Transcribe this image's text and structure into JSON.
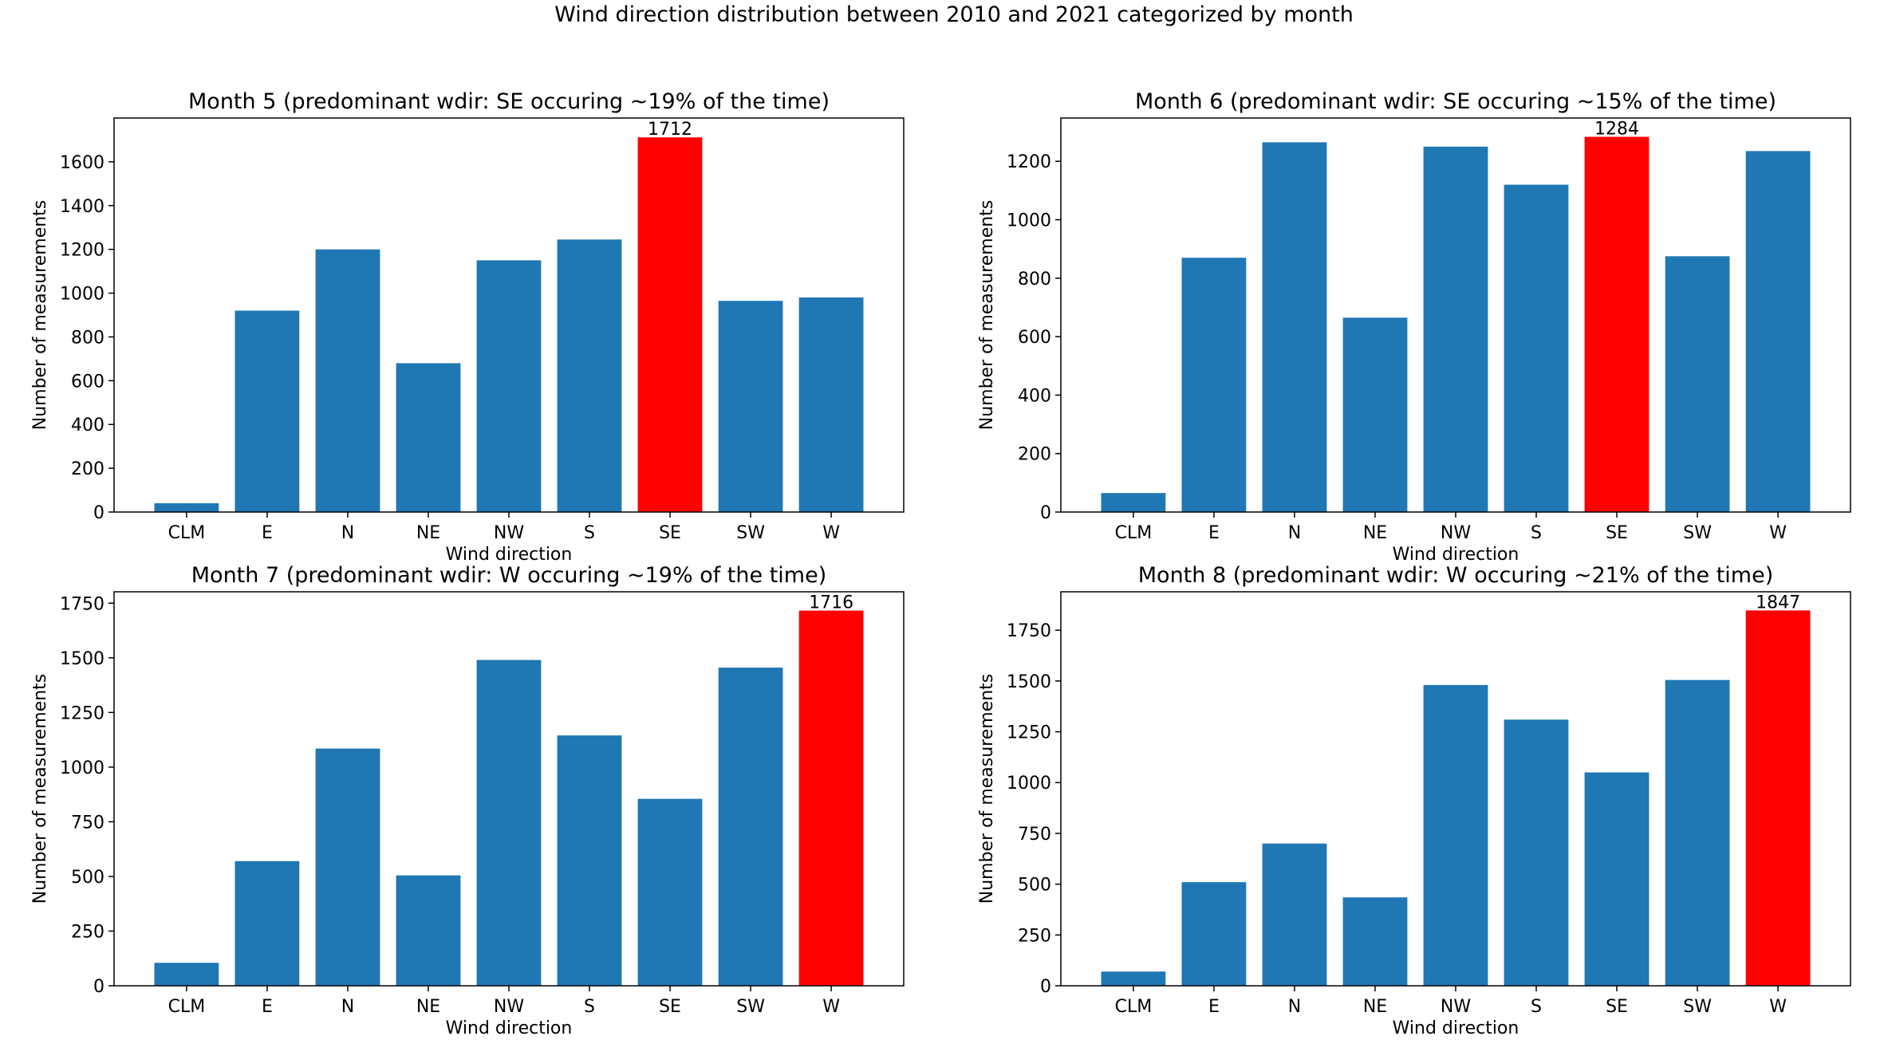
{
  "figure": {
    "title": "Wind direction distribution between 2010 and 2021 categorized by month"
  },
  "colors": {
    "bar": "#1f77b4",
    "highlight": "#ff0000",
    "axis": "#000000",
    "background": "#ffffff"
  },
  "chart_data": [
    {
      "type": "bar",
      "title": "Month 5 (predominant wdir: SE occuring ~19% of the time)",
      "xlabel": "Wind direction",
      "ylabel": "Number of measurements",
      "categories": [
        "CLM",
        "E",
        "N",
        "NE",
        "NW",
        "S",
        "SE",
        "SW",
        "W"
      ],
      "values": [
        40,
        920,
        1200,
        680,
        1150,
        1245,
        1712,
        965,
        980
      ],
      "highlight": "SE",
      "highlight_label": "1712",
      "ylim": [
        0,
        1800
      ],
      "yticks": [
        0,
        200,
        400,
        600,
        800,
        1000,
        1200,
        1400,
        1600
      ],
      "ytick_labels": [
        "0",
        "200",
        "400",
        "600",
        "800",
        "1000",
        "1200",
        "1400",
        "1600"
      ],
      "grid": false
    },
    {
      "type": "bar",
      "title": "Month 6 (predominant wdir: SE occuring ~15% of the time)",
      "xlabel": "Wind direction",
      "ylabel": "Number of measurements",
      "categories": [
        "CLM",
        "E",
        "N",
        "NE",
        "NW",
        "S",
        "SE",
        "SW",
        "W"
      ],
      "values": [
        65,
        870,
        1265,
        665,
        1250,
        1120,
        1284,
        875,
        1235
      ],
      "highlight": "SE",
      "highlight_label": "1284",
      "ylim": [
        0,
        1348
      ],
      "yticks": [
        0,
        200,
        400,
        600,
        800,
        1000,
        1200
      ],
      "ytick_labels": [
        "0",
        "200",
        "400",
        "600",
        "800",
        "1000",
        "1200"
      ],
      "grid": false
    },
    {
      "type": "bar",
      "title": "Month 7 (predominant wdir: W occuring ~19% of the time)",
      "xlabel": "Wind direction",
      "ylabel": "Number of measurements",
      "categories": [
        "CLM",
        "E",
        "N",
        "NE",
        "NW",
        "S",
        "SE",
        "SW",
        "W"
      ],
      "values": [
        105,
        570,
        1085,
        505,
        1490,
        1145,
        855,
        1455,
        1716
      ],
      "highlight": "W",
      "highlight_label": "1716",
      "ylim": [
        0,
        1802
      ],
      "yticks": [
        0,
        250,
        500,
        750,
        1000,
        1250,
        1500,
        1750
      ],
      "ytick_labels": [
        "0",
        "250",
        "500",
        "750",
        "1000",
        "1250",
        "1500",
        "1750"
      ],
      "grid": false
    },
    {
      "type": "bar",
      "title": "Month 8 (predominant wdir: W occuring ~21% of the time)",
      "xlabel": "Wind direction",
      "ylabel": "Number of measurements",
      "categories": [
        "CLM",
        "E",
        "N",
        "NE",
        "NW",
        "S",
        "SE",
        "SW",
        "W"
      ],
      "values": [
        70,
        510,
        700,
        435,
        1480,
        1310,
        1050,
        1505,
        1847
      ],
      "highlight": "W",
      "highlight_label": "1847",
      "ylim": [
        0,
        1939
      ],
      "yticks": [
        0,
        250,
        500,
        750,
        1000,
        1250,
        1500,
        1750
      ],
      "ytick_labels": [
        "0",
        "250",
        "500",
        "750",
        "1000",
        "1250",
        "1500",
        "1750"
      ],
      "grid": false
    }
  ]
}
